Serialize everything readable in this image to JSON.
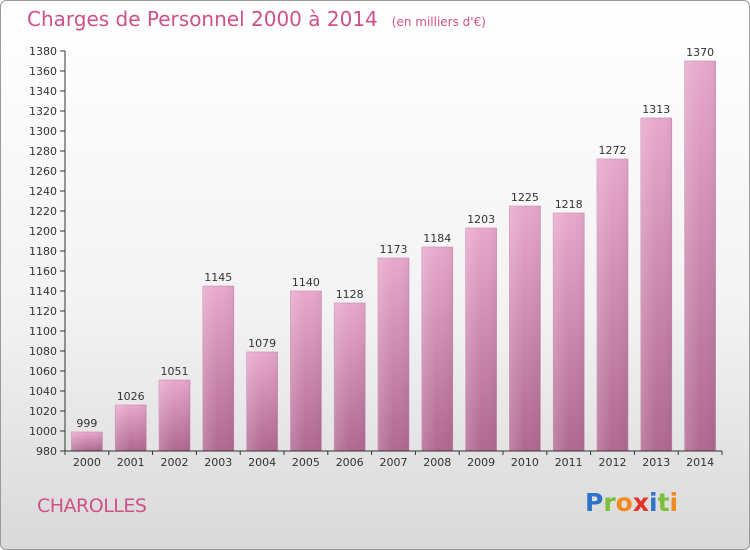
{
  "header": {
    "title": "Charges de Personnel 2000 à 2014",
    "subtitle": "(en milliers d'€)"
  },
  "footer": {
    "town": "CHAROLLES",
    "logo_text": "Proxiti"
  },
  "colors": {
    "title": "#d0508a",
    "bar_light": "#e8a8cc",
    "bar_dark": "#b06890"
  },
  "chart_data": {
    "type": "bar",
    "categories": [
      "2000",
      "2001",
      "2002",
      "2003",
      "2004",
      "2005",
      "2006",
      "2007",
      "2008",
      "2009",
      "2010",
      "2011",
      "2012",
      "2013",
      "2014"
    ],
    "values": [
      999,
      1026,
      1051,
      1145,
      1079,
      1140,
      1128,
      1173,
      1184,
      1203,
      1225,
      1218,
      1272,
      1313,
      1370
    ],
    "title": "Charges de Personnel 2000 à 2014",
    "ylim": [
      980,
      1380
    ],
    "ytick_step": 20,
    "grid": false,
    "legend": "none"
  }
}
